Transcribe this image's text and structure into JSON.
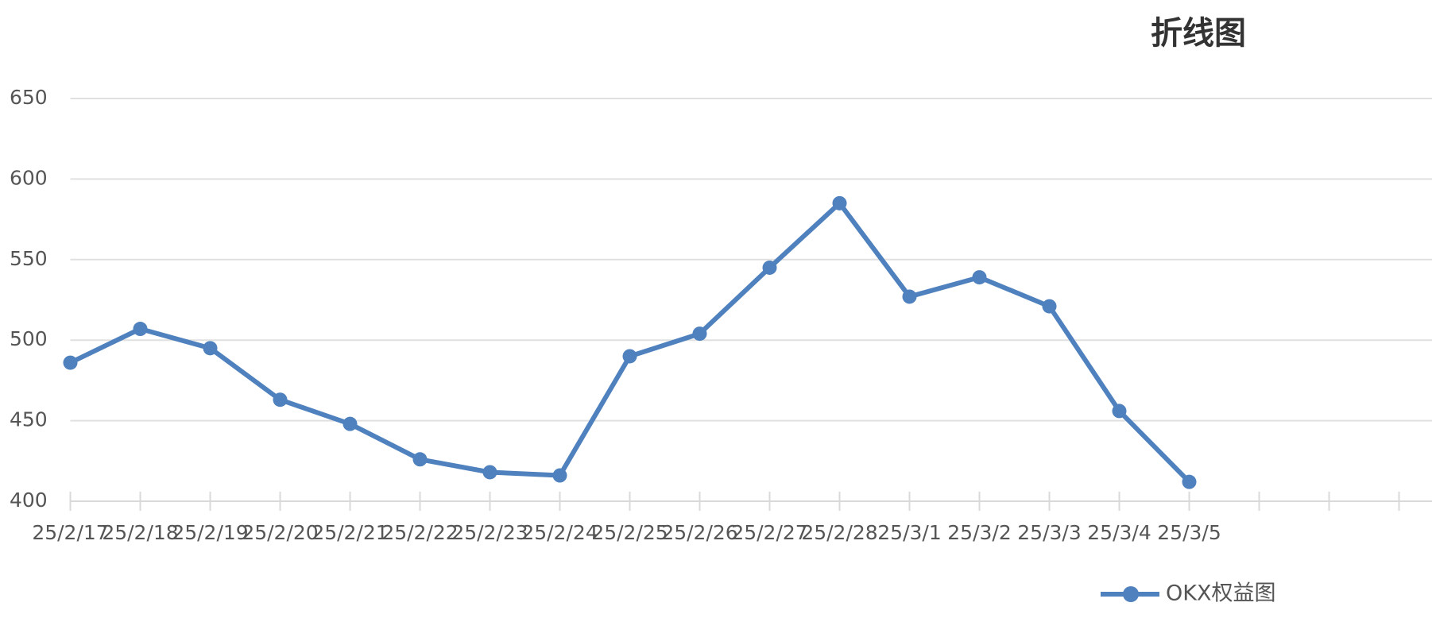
{
  "chart_data": {
    "type": "line",
    "title": "折线图",
    "categories": [
      "25/2/17",
      "25/2/18",
      "25/2/19",
      "25/2/20",
      "25/2/21",
      "25/2/22",
      "25/2/23",
      "25/2/24",
      "25/2/25",
      "25/2/26",
      "25/2/27",
      "25/2/28",
      "25/3/1",
      "25/3/2",
      "25/3/3",
      "25/3/4",
      "25/3/5",
      null,
      null,
      null
    ],
    "series": [
      {
        "name": "OKX权益图",
        "color": "#4e81bd",
        "values": [
          486,
          507,
          495,
          463,
          448,
          426,
          418,
          416,
          490,
          504,
          545,
          585,
          527,
          539,
          521,
          456,
          412,
          null,
          null,
          null
        ]
      }
    ],
    "ylim": [
      400,
      650
    ],
    "yticks": [
      400,
      450,
      500,
      550,
      600,
      650
    ],
    "grid": true,
    "legend": "bottom-right"
  }
}
